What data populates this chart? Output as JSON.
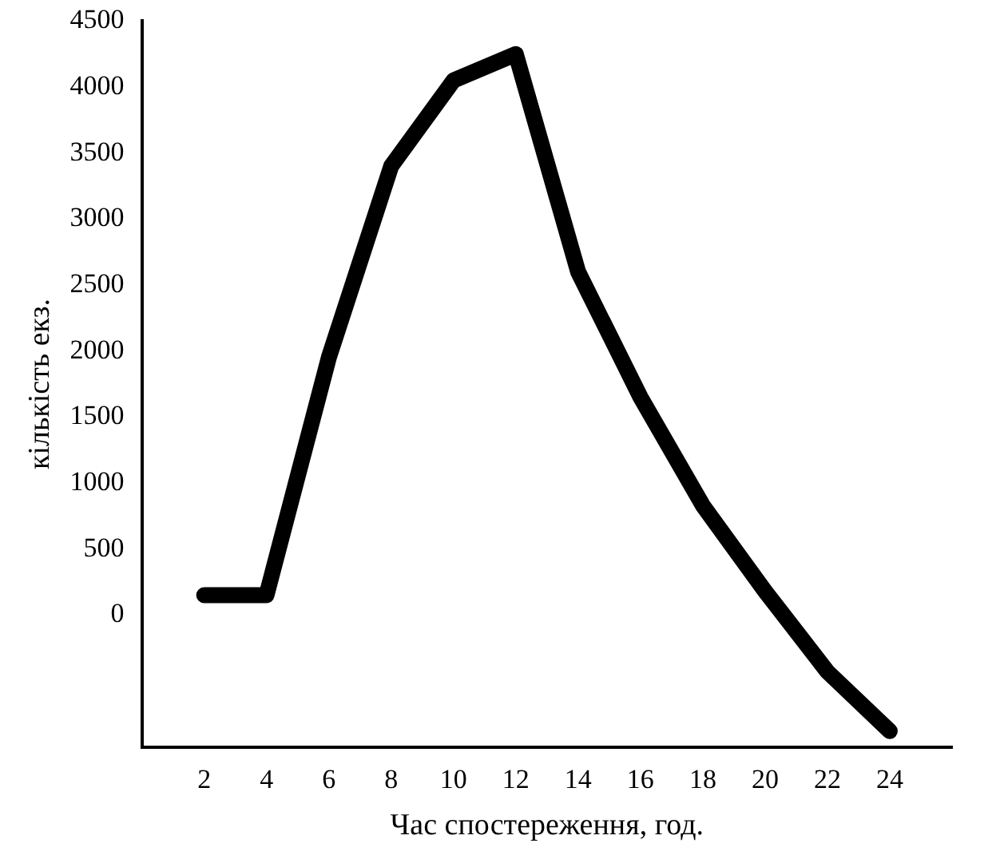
{
  "chart_data": {
    "type": "line",
    "xlabel": "Час спостереження, год.",
    "ylabel": "кількість екз.",
    "x": [
      2,
      4,
      6,
      8,
      10,
      12,
      14,
      16,
      18,
      20,
      22,
      24
    ],
    "series": [
      {
        "color": "#000000",
        "values": [
          150,
          150,
          1950,
          3400,
          4050,
          4250,
          2600,
          1650,
          830,
          180,
          -430,
          -880
        ]
      }
    ],
    "xlim": [
      0,
      26
    ],
    "xticks": [
      2,
      4,
      6,
      8,
      10,
      12,
      14,
      16,
      18,
      20,
      22,
      24
    ],
    "ylim": [
      -1000,
      4500
    ],
    "yticks": [
      0,
      500,
      1000,
      1500,
      2000,
      2500,
      3000,
      3500,
      4000,
      4500
    ],
    "grid": false,
    "legend": false,
    "marker": "none",
    "line_style": "solid"
  }
}
